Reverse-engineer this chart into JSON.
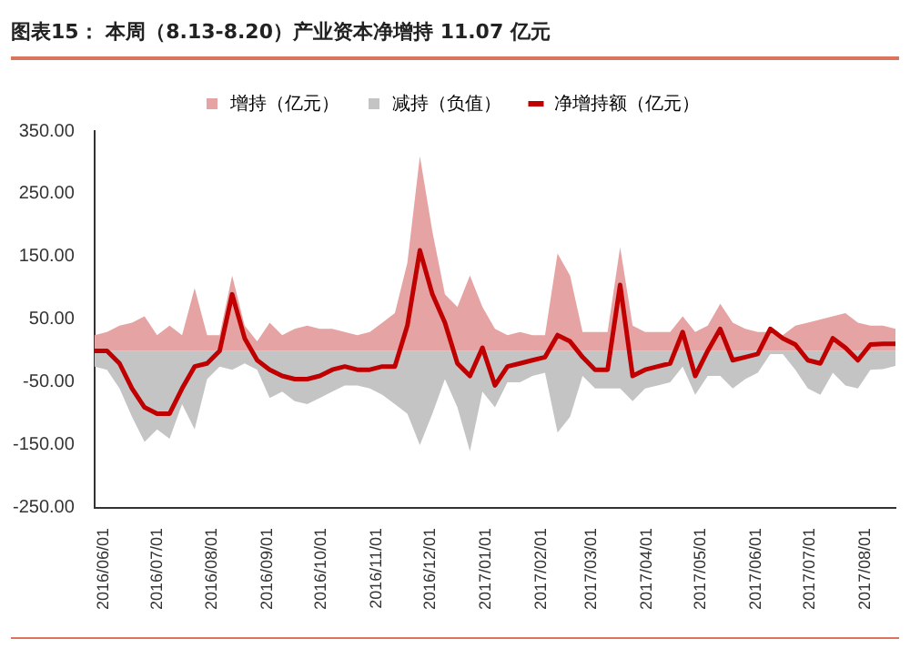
{
  "chart_data": {
    "type": "area",
    "title": "图表15：  本周（8.13-8.20）产业资本净增持 11.07 亿元",
    "x": [
      "2016-05-27",
      "2016-06-03",
      "2016-06-10",
      "2016-06-17",
      "2016-06-24",
      "2016-07-01",
      "2016-07-08",
      "2016-07-15",
      "2016-07-22",
      "2016-07-29",
      "2016-08-05",
      "2016-08-12",
      "2016-08-19",
      "2016-08-26",
      "2016-09-02",
      "2016-09-09",
      "2016-09-16",
      "2016-09-23",
      "2016-09-30",
      "2016-10-07",
      "2016-10-14",
      "2016-10-21",
      "2016-10-28",
      "2016-11-04",
      "2016-11-11",
      "2016-11-18",
      "2016-11-25",
      "2016-12-02",
      "2016-12-09",
      "2016-12-16",
      "2016-12-23",
      "2016-12-30",
      "2017-01-06",
      "2017-01-13",
      "2017-01-20",
      "2017-01-27",
      "2017-02-03",
      "2017-02-10",
      "2017-02-17",
      "2017-02-24",
      "2017-03-03",
      "2017-03-10",
      "2017-03-17",
      "2017-03-24",
      "2017-03-31",
      "2017-04-07",
      "2017-04-14",
      "2017-04-21",
      "2017-04-28",
      "2017-05-05",
      "2017-05-12",
      "2017-05-19",
      "2017-05-26",
      "2017-06-02",
      "2017-06-09",
      "2017-06-16",
      "2017-06-23",
      "2017-06-30",
      "2017-07-07",
      "2017-07-14",
      "2017-07-21",
      "2017-07-28",
      "2017-08-04",
      "2017-08-11",
      "2017-08-18"
    ],
    "series": [
      {
        "name": "增持（亿元）",
        "color": "#e6a3a3",
        "values": [
          25,
          30,
          40,
          45,
          55,
          25,
          40,
          25,
          100,
          25,
          25,
          120,
          40,
          15,
          45,
          25,
          35,
          40,
          35,
          35,
          30,
          25,
          30,
          45,
          60,
          140,
          310,
          190,
          90,
          70,
          120,
          70,
          35,
          25,
          30,
          25,
          25,
          155,
          120,
          30,
          30,
          30,
          165,
          40,
          30,
          30,
          30,
          55,
          30,
          40,
          75,
          45,
          35,
          30,
          30,
          25,
          40,
          45,
          50,
          55,
          60,
          45,
          40,
          40,
          35
        ]
      },
      {
        "name": "减持（负值）",
        "color": "#c4c4c4",
        "values": [
          -25,
          -30,
          -60,
          -105,
          -145,
          -125,
          -140,
          -85,
          -125,
          -45,
          -25,
          -30,
          -20,
          -30,
          -75,
          -65,
          -80,
          -85,
          -75,
          -65,
          -55,
          -55,
          -60,
          -70,
          -85,
          -100,
          -150,
          -100,
          -45,
          -90,
          -160,
          -65,
          -90,
          -50,
          -50,
          -40,
          -35,
          -130,
          -105,
          -40,
          -60,
          -60,
          -60,
          -80,
          -60,
          -55,
          -50,
          -25,
          -70,
          -40,
          -40,
          -60,
          -45,
          -35,
          -5,
          -5,
          -30,
          -60,
          -70,
          -35,
          -55,
          -60,
          -30,
          -29,
          -24
        ]
      },
      {
        "name": "净增持额（亿元）",
        "type": "line",
        "color": "#c00000",
        "values": [
          0,
          0,
          -20,
          -60,
          -90,
          -100,
          -100,
          -60,
          -25,
          -20,
          0,
          90,
          20,
          -15,
          -30,
          -40,
          -45,
          -45,
          -40,
          -30,
          -25,
          -30,
          -30,
          -25,
          -25,
          40,
          160,
          90,
          45,
          -20,
          -40,
          5,
          -55,
          -25,
          -20,
          -15,
          -10,
          25,
          15,
          -10,
          -30,
          -30,
          105,
          -40,
          -30,
          -25,
          -20,
          30,
          -40,
          0,
          35,
          -15,
          -10,
          -5,
          35,
          20,
          10,
          -15,
          -20,
          20,
          5,
          -15,
          10,
          11,
          11
        ]
      }
    ],
    "xlim": [
      "2016-05-27",
      "2017-08-18"
    ],
    "xticks": [
      {
        "value": "2016-06-01",
        "label": "2016/06/01"
      },
      {
        "value": "2016-07-01",
        "label": "2016/07/01"
      },
      {
        "value": "2016-08-01",
        "label": "2016/08/01"
      },
      {
        "value": "2016-09-01",
        "label": "2016/09/01"
      },
      {
        "value": "2016-10-01",
        "label": "2016/10/01"
      },
      {
        "value": "2016-11-01",
        "label": "2016/11/01"
      },
      {
        "value": "2016-12-01",
        "label": "2016/12/01"
      },
      {
        "value": "2017-01-01",
        "label": "2017/01/01"
      },
      {
        "value": "2017-02-01",
        "label": "2017/02/01"
      },
      {
        "value": "2017-03-01",
        "label": "2017/03/01"
      },
      {
        "value": "2017-04-01",
        "label": "2017/04/01"
      },
      {
        "value": "2017-05-01",
        "label": "2017/05/01"
      },
      {
        "value": "2017-06-01",
        "label": "2017/06/01"
      },
      {
        "value": "2017-07-01",
        "label": "2017/07/01"
      },
      {
        "value": "2017-08-01",
        "label": "2017/08/01"
      }
    ],
    "ylim": [
      -250,
      350
    ],
    "yticks": [
      {
        "value": -250,
        "label": "-250.00"
      },
      {
        "value": -150,
        "label": "-150.00"
      },
      {
        "value": -50,
        "label": "-50.00"
      },
      {
        "value": 50,
        "label": "50.00"
      },
      {
        "value": 150,
        "label": "150.00"
      },
      {
        "value": 250,
        "label": "250.00"
      },
      {
        "value": 350,
        "label": "350.00"
      }
    ],
    "legend": "top",
    "grid": false,
    "marker": "none"
  }
}
